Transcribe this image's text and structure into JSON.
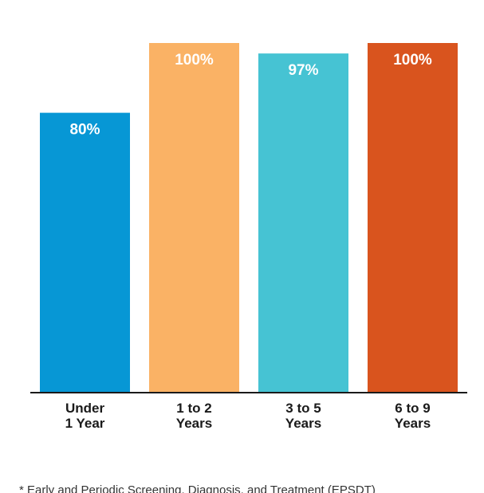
{
  "chart_data": {
    "type": "bar",
    "title": "",
    "categories": [
      [
        "Under",
        "1 Year"
      ],
      [
        "1 to 2",
        "Years"
      ],
      [
        "3 to 5",
        "Years"
      ],
      [
        "6 to 9",
        "Years"
      ]
    ],
    "values": [
      80,
      100,
      97,
      100
    ],
    "value_labels": [
      "80%",
      "100%",
      "97%",
      "100%"
    ],
    "colors": [
      "#0797d5",
      "#fab265",
      "#46c3d3",
      "#d9541e"
    ],
    "axis_color": "#1a1a1a",
    "ylim": [
      0,
      100
    ],
    "grid": false,
    "legend": "none"
  },
  "footnote": "* Early and Periodic Screening, Diagnosis, and Treatment (EPSDT)"
}
